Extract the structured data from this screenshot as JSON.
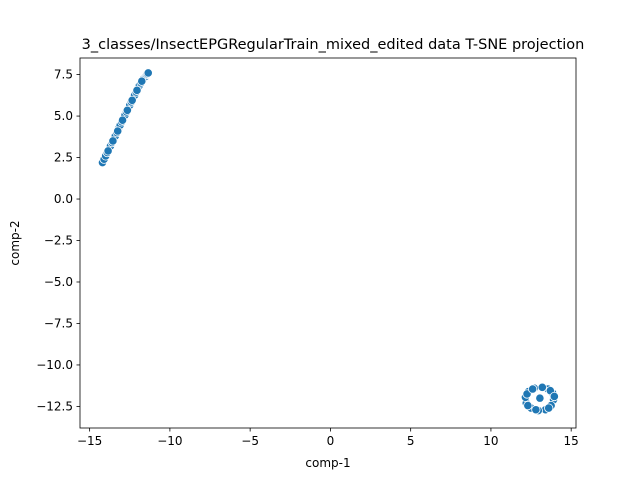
{
  "chart_data": {
    "type": "scatter",
    "title": "3_classes/InsectEPGRegularTrain_mixed_edited data T-SNE projection",
    "xlabel": "comp-1",
    "ylabel": "comp-2",
    "xlim": [
      -15.6,
      15.3
    ],
    "ylim": [
      -13.8,
      8.5
    ],
    "xticks": [
      -15,
      -10,
      -5,
      0,
      5,
      10,
      15
    ],
    "xtick_labels": [
      "−15",
      "−10",
      "−5",
      "0",
      "5",
      "10",
      "15"
    ],
    "yticks": [
      -12.5,
      -10.0,
      -7.5,
      -5.0,
      -2.5,
      0.0,
      2.5,
      5.0,
      7.5
    ],
    "ytick_labels": [
      "−12.5",
      "−10.0",
      "−7.5",
      "−5.0",
      "−2.5",
      "0.0",
      "2.5",
      "5.0",
      "7.5"
    ],
    "grid": false,
    "marker_color": "#1f77b4",
    "marker_edge_color": "#ffffff",
    "series": [
      {
        "values_x": [
          -14.2,
          -14.1,
          -14.0,
          -13.9,
          -13.8,
          -13.7,
          -13.6,
          -13.5,
          -13.4,
          -13.3,
          -13.2,
          -13.1,
          -13.0,
          -12.9,
          -12.8,
          -12.7,
          -12.6,
          -12.5,
          -12.4,
          -12.3,
          -12.2,
          -12.1,
          -12.0,
          -11.9,
          -11.8,
          -11.7,
          -11.6,
          -11.5,
          -11.45,
          -11.4,
          -11.35,
          -13.85,
          -13.55,
          -13.25,
          -12.95,
          -12.65,
          -12.35,
          -12.05,
          -11.75
        ],
        "values_y": [
          2.2,
          2.4,
          2.6,
          2.8,
          3.0,
          3.2,
          3.4,
          3.6,
          3.8,
          4.0,
          4.25,
          4.45,
          4.65,
          4.85,
          5.05,
          5.25,
          5.45,
          5.65,
          5.85,
          6.05,
          6.25,
          6.45,
          6.65,
          6.85,
          7.0,
          7.15,
          7.3,
          7.4,
          7.5,
          7.55,
          7.6,
          2.9,
          3.5,
          4.1,
          4.75,
          5.35,
          5.95,
          6.55,
          7.1
        ]
      },
      {
        "values_x": [
          13.05,
          13.55,
          13.85,
          13.9,
          13.75,
          13.4,
          12.95,
          12.5,
          12.2,
          12.15,
          12.35,
          12.7,
          13.2,
          13.7,
          13.95,
          13.6,
          12.8,
          12.3,
          12.25,
          12.6
        ],
        "values_y": [
          -12.0,
          -11.45,
          -11.7,
          -12.1,
          -12.45,
          -12.7,
          -12.75,
          -12.6,
          -12.3,
          -11.95,
          -11.6,
          -11.4,
          -11.35,
          -11.55,
          -11.9,
          -12.6,
          -12.7,
          -12.45,
          -11.75,
          -11.45
        ]
      }
    ]
  }
}
